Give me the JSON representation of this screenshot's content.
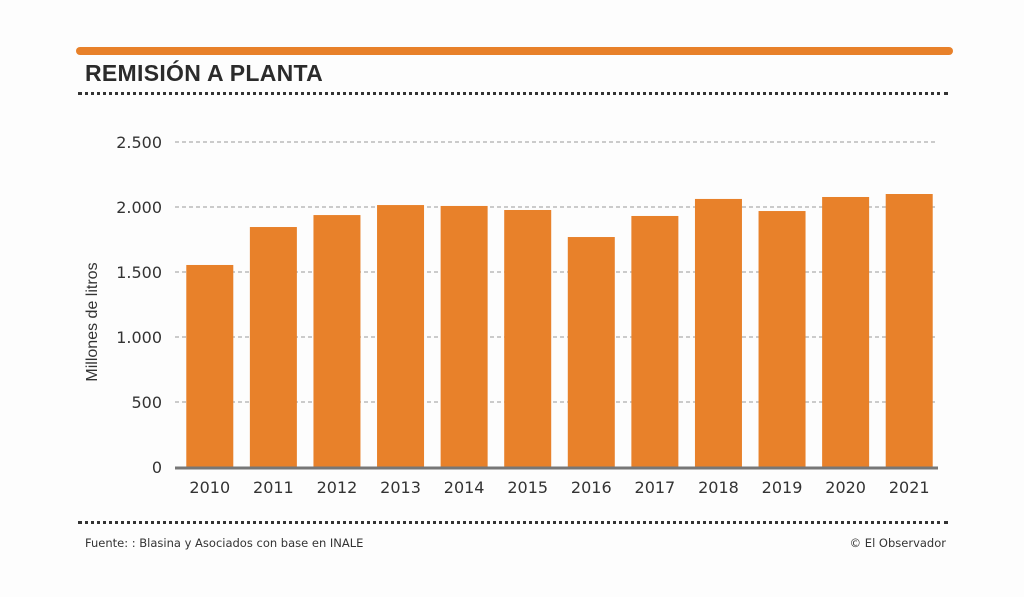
{
  "header": {
    "title": "REMISIÓN A PLANTA"
  },
  "footer": {
    "source": "Fuente: : Blasina y Asociados con base en INALE",
    "credit": "© El Observador"
  },
  "colors": {
    "bar": "#e8812a",
    "accent": "#e8812a",
    "text": "#2b2b2b",
    "grid": "#999999",
    "baseline": "#777777"
  },
  "chart_data": {
    "type": "bar",
    "title": "REMISIÓN A PLANTA",
    "xlabel": "",
    "ylabel": "Millones de litros",
    "categories": [
      "2010",
      "2011",
      "2012",
      "2013",
      "2014",
      "2015",
      "2016",
      "2017",
      "2018",
      "2019",
      "2020",
      "2021"
    ],
    "values": [
      1554,
      1846,
      1938,
      2015,
      2008,
      1977,
      1769,
      1931,
      2062,
      1969,
      2077,
      2100
    ],
    "ylim": [
      0,
      2500
    ],
    "yticks": [
      0,
      500,
      1000,
      1500,
      2000,
      2500
    ],
    "ytick_labels": [
      "0",
      "500",
      "1.000",
      "1.500",
      "2.000",
      "2.500"
    ],
    "grid": true,
    "grid_style": "dashed",
    "legend": "none"
  }
}
